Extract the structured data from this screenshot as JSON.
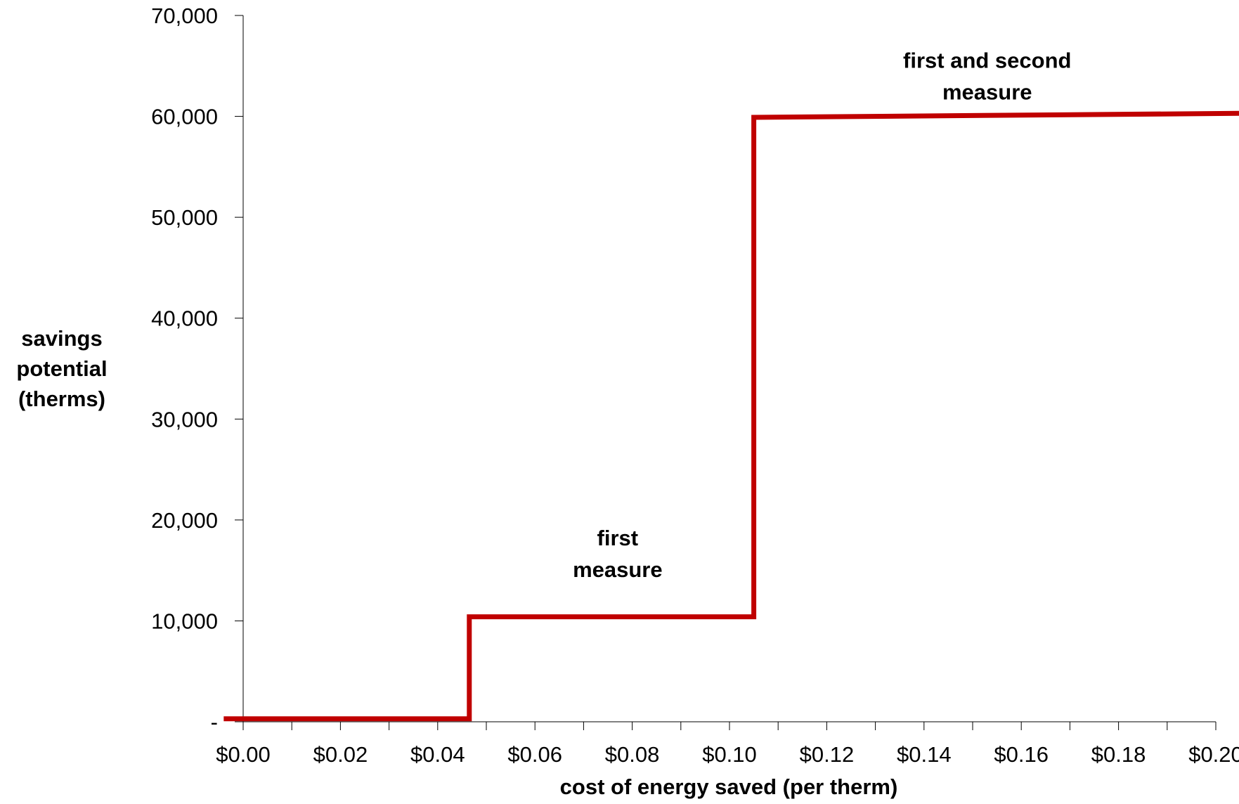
{
  "chart_data": {
    "type": "line",
    "title": "",
    "xlabel": "cost of energy saved (per therm)",
    "ylabel_lines": [
      "savings",
      "potential",
      "(therms)"
    ],
    "xlim": [
      -0.004,
      0.22
    ],
    "ylim": [
      0,
      70000
    ],
    "x_ticks": [
      0.0,
      0.02,
      0.04,
      0.06,
      0.08,
      0.1,
      0.12,
      0.14,
      0.16,
      0.18,
      0.2
    ],
    "x_tick_labels": [
      "$0.00",
      "$0.02",
      "$0.04",
      "$0.06",
      "$0.08",
      "$0.10",
      "$0.12",
      "$0.14",
      "$0.16",
      "$0.18",
      "$0.20"
    ],
    "y_ticks": [
      0,
      10000,
      20000,
      30000,
      40000,
      50000,
      60000,
      70000
    ],
    "y_tick_labels": [
      "-",
      "10,000",
      "20,000",
      "30,000",
      "40,000",
      "50,000",
      "60,000",
      "70,000"
    ],
    "grid": false,
    "series": [
      {
        "color": "#C00000",
        "x": [
          -0.004,
          0.0465,
          0.0465,
          0.105,
          0.105,
          0.22
        ],
        "y": [
          300,
          300,
          10400,
          10400,
          59900,
          60300
        ]
      }
    ],
    "annotations": [
      {
        "lines": [
          "first",
          "measure"
        ],
        "x": 0.077,
        "y": 17500
      },
      {
        "lines": [
          "first and second",
          "measure"
        ],
        "x": 0.153,
        "y": 64800
      }
    ]
  }
}
